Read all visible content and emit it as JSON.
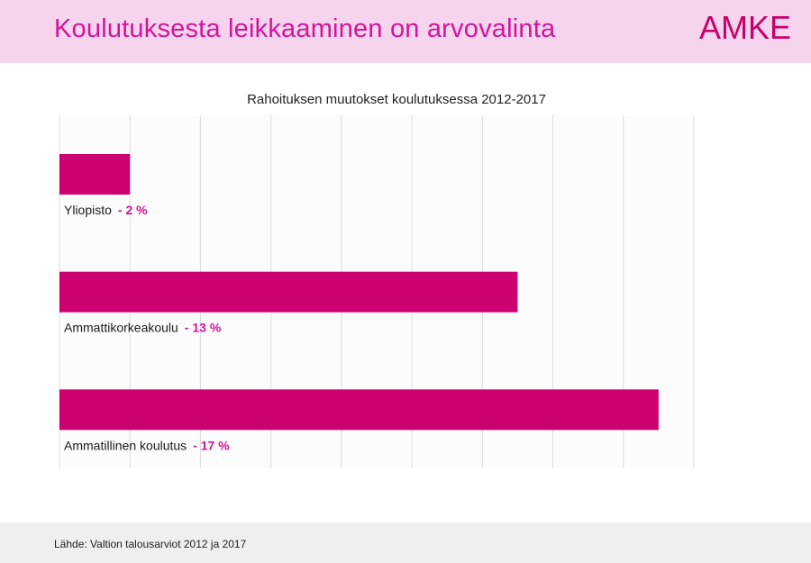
{
  "header": {
    "title": "Koulutuksesta leikkaaminen on arvovalinta",
    "logo": "AMKE",
    "background": "#f6d4ee",
    "title_color": "#d4149a",
    "logo_color": "#c8006a"
  },
  "chart_data": {
    "type": "bar",
    "orientation": "horizontal",
    "title": "Rahoituksen muutokset koulutuksessa 2012-2017",
    "categories": [
      "Yliopisto",
      "Ammattikorkeakoulu",
      "Ammatillinen koulutus"
    ],
    "values": [
      -2,
      -13,
      -17
    ],
    "value_labels": [
      "- 2 %",
      "- 13 %",
      "- 17 %"
    ],
    "xlim": [
      0,
      -18
    ],
    "grid": true,
    "bar_color": "#cc0070",
    "value_label_color": "#d4149a",
    "legend": "none"
  },
  "footer": {
    "source": "Lähde: Valtion talousarviot 2012 ja 2017"
  }
}
